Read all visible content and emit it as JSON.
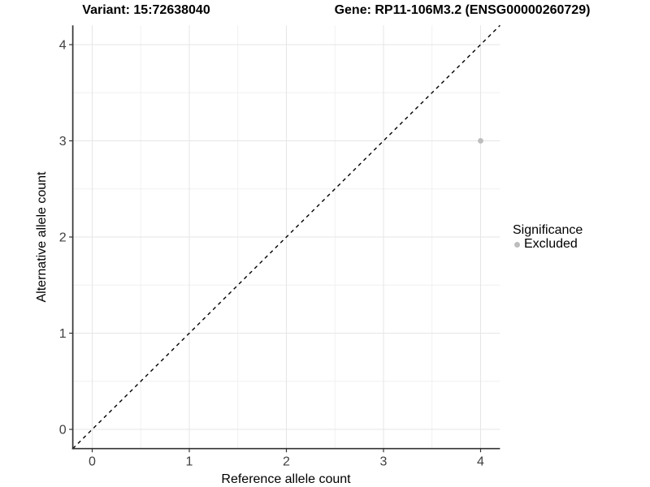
{
  "titles": {
    "variant": "Variant: 15:72638040",
    "gene": "Gene: RP11-106M3.2 (ENSG00000260729)"
  },
  "legend": {
    "title": "Significance",
    "items": [
      {
        "label": "Excluded",
        "color": "#bdbdbd"
      }
    ]
  },
  "colors": {
    "point": "#bdbdbd",
    "axis_line": "#333333",
    "tick_text": "#404040",
    "grid_major": "#e6e6e6",
    "grid_minor": "#f0f0f0",
    "reference_line": "#000000"
  },
  "chart_data": {
    "type": "scatter",
    "title_left": "Variant: 15:72638040",
    "title_right": "Gene: RP11-106M3.2 (ENSG00000260729)",
    "xlabel": "Reference allele count",
    "ylabel": "Alternative allele count",
    "xlim": [
      -0.2,
      4.2
    ],
    "ylim": [
      -0.2,
      4.2
    ],
    "x_ticks": [
      0,
      1,
      2,
      3,
      4
    ],
    "y_ticks": [
      0,
      1,
      2,
      3,
      4
    ],
    "x_minor_ticks": [
      0.5,
      1.5,
      2.5,
      3.5
    ],
    "y_minor_ticks": [
      0.5,
      1.5,
      2.5,
      3.5
    ],
    "grid": true,
    "reference_line": {
      "type": "identity",
      "style": "dashed",
      "from": [
        -0.2,
        -0.2
      ],
      "to": [
        4.2,
        4.2
      ]
    },
    "series": [
      {
        "name": "Excluded",
        "color": "#bdbdbd",
        "points": [
          {
            "x": 4,
            "y": 3
          }
        ]
      }
    ],
    "legend": {
      "title": "Significance",
      "entries": [
        "Excluded"
      ],
      "position": "right"
    }
  }
}
